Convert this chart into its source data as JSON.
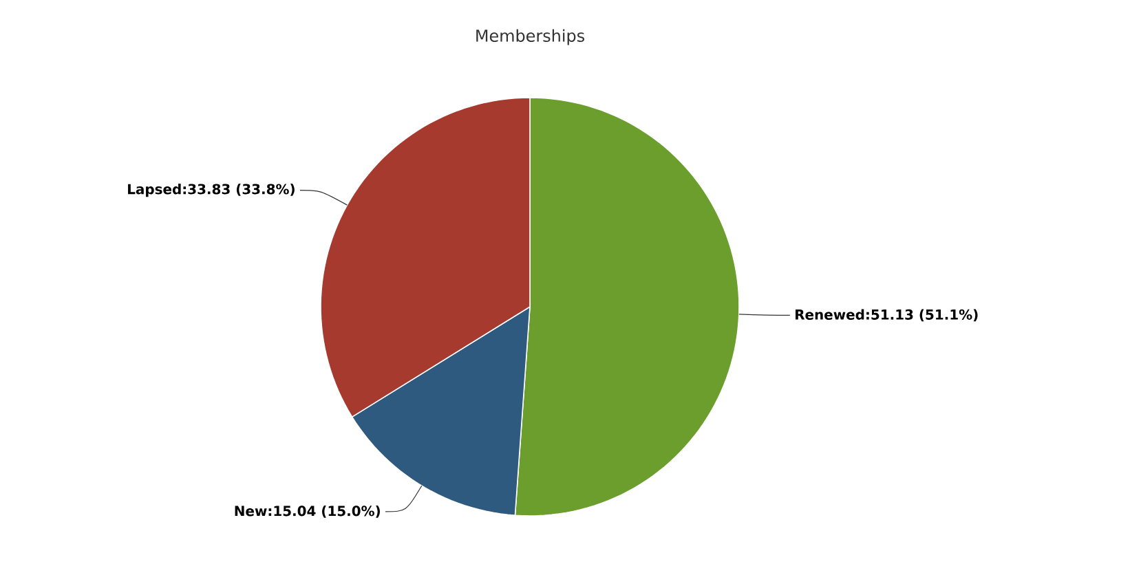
{
  "chart_data": {
    "type": "pie",
    "title": "Memberships",
    "categories": [
      "Renewed",
      "New",
      "Lapsed"
    ],
    "values": [
      51.13,
      15.04,
      33.83
    ],
    "value_labels": [
      ":51.13 (51.1%)",
      ":15.04 (15.0%)",
      ":33.83 (33.8%)"
    ],
    "colors": [
      "#6b9e2c",
      "#2d5a7e",
      "#a63a2e"
    ]
  }
}
